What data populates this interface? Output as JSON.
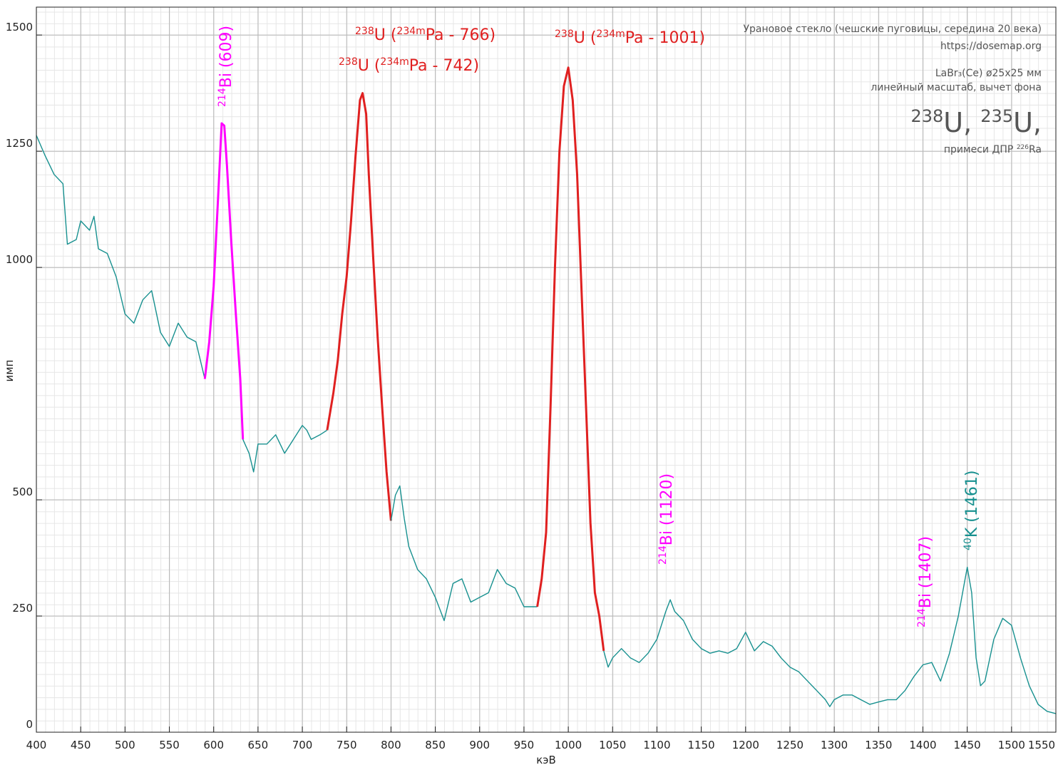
{
  "chart_data": {
    "type": "line",
    "xlabel": "кэВ",
    "ylabel": "имп",
    "xlim": [
      400,
      1550
    ],
    "ylim": [
      0,
      1560
    ],
    "xticks": [
      400,
      450,
      500,
      550,
      600,
      650,
      700,
      750,
      800,
      850,
      900,
      950,
      1000,
      1050,
      1100,
      1150,
      1200,
      1250,
      1300,
      1350,
      1400,
      1450,
      1500,
      1550
    ],
    "yticks": [
      0,
      250,
      500,
      1000,
      1250,
      1500
    ],
    "grid": true,
    "series": [
      {
        "color": "#17908f",
        "x": [
          400,
          410,
          420,
          430,
          435,
          445,
          450,
          460,
          465,
          470,
          480,
          490,
          500,
          510,
          520,
          530,
          540,
          550,
          560,
          570,
          580,
          590
        ],
        "values": [
          1284,
          1240,
          1200,
          1180,
          1050,
          1060,
          1100,
          1080,
          1110,
          1040,
          1030,
          980,
          900,
          880,
          930,
          950,
          860,
          830,
          880,
          850,
          840,
          760
        ]
      },
      {
        "color": "#ff00ff",
        "x": [
          590,
          595,
          600,
          605,
          609,
          612,
          615,
          620,
          625,
          630,
          633
        ],
        "values": [
          760,
          840,
          960,
          1150,
          1310,
          1305,
          1220,
          1050,
          900,
          760,
          630
        ]
      },
      {
        "color": "#17908f",
        "x": [
          633,
          640,
          645,
          650,
          660,
          670,
          680,
          690,
          700,
          705,
          710,
          720,
          728
        ],
        "values": [
          630,
          600,
          560,
          620,
          620,
          640,
          600,
          630,
          660,
          650,
          630,
          640,
          650
        ]
      },
      {
        "color": "#e02020",
        "x": [
          728,
          735,
          740,
          745,
          750,
          755,
          760,
          765,
          768,
          772,
          775,
          780,
          785,
          790,
          795,
          800
        ],
        "values": [
          650,
          730,
          800,
          900,
          980,
          1100,
          1240,
          1360,
          1375,
          1330,
          1200,
          1020,
          850,
          700,
          560,
          455
        ]
      },
      {
        "color": "#17908f",
        "x": [
          800,
          805,
          810,
          815,
          820,
          830,
          840,
          850,
          860,
          870,
          880,
          890,
          900,
          910,
          920,
          930,
          940,
          950,
          960,
          965
        ],
        "values": [
          455,
          510,
          530,
          460,
          400,
          350,
          330,
          290,
          240,
          320,
          330,
          280,
          290,
          300,
          350,
          320,
          310,
          270,
          270,
          270
        ]
      },
      {
        "color": "#e02020",
        "x": [
          965,
          970,
          975,
          980,
          985,
          990,
          995,
          1000,
          1005,
          1010,
          1015,
          1020,
          1025,
          1030,
          1035,
          1040
        ],
        "values": [
          270,
          330,
          430,
          700,
          1000,
          1250,
          1390,
          1430,
          1360,
          1200,
          950,
          700,
          450,
          300,
          250,
          175
        ]
      },
      {
        "color": "#17908f",
        "x": [
          1040,
          1045,
          1050,
          1060,
          1070,
          1080,
          1090,
          1100,
          1110,
          1115,
          1120,
          1130,
          1140,
          1150,
          1160,
          1170,
          1180,
          1190,
          1200,
          1210,
          1220,
          1230,
          1240,
          1250,
          1260,
          1270,
          1280,
          1290,
          1295,
          1300,
          1310,
          1320,
          1330,
          1340,
          1350,
          1360,
          1370,
          1380,
          1390,
          1400,
          1410,
          1420,
          1430,
          1440,
          1450,
          1455,
          1460,
          1465,
          1470,
          1480,
          1490,
          1500,
          1510,
          1520,
          1530,
          1540,
          1550
        ],
        "values": [
          175,
          140,
          160,
          180,
          160,
          150,
          170,
          200,
          260,
          285,
          260,
          240,
          200,
          180,
          170,
          175,
          170,
          180,
          215,
          175,
          195,
          185,
          160,
          140,
          130,
          110,
          90,
          70,
          55,
          70,
          80,
          80,
          70,
          60,
          65,
          70,
          70,
          90,
          120,
          145,
          150,
          110,
          170,
          250,
          355,
          300,
          160,
          100,
          110,
          200,
          245,
          230,
          160,
          100,
          60,
          45,
          40
        ]
      }
    ],
    "annotations": [
      {
        "color": "#ff00ff",
        "parts": [
          {
            "t": "214",
            "sup": true
          },
          {
            "t": "Bi (609)"
          }
        ]
      },
      {
        "color": "#e02020",
        "parts": [
          {
            "t": "238",
            "sup": true
          },
          {
            "t": "U ("
          },
          {
            "t": "234m",
            "sup": true
          },
          {
            "t": "Pa - 766)"
          }
        ]
      },
      {
        "color": "#e02020",
        "parts": [
          {
            "t": "238",
            "sup": true
          },
          {
            "t": "U ("
          },
          {
            "t": "234m",
            "sup": true
          },
          {
            "t": "Pa - 742)"
          }
        ]
      },
      {
        "color": "#e02020",
        "parts": [
          {
            "t": "238",
            "sup": true
          },
          {
            "t": "U ("
          },
          {
            "t": "234m",
            "sup": true
          },
          {
            "t": "Pa - 1001)"
          }
        ]
      },
      {
        "color": "#ff00ff",
        "parts": [
          {
            "t": "214",
            "sup": true
          },
          {
            "t": "Bi (1120)"
          }
        ]
      },
      {
        "color": "#ff00ff",
        "parts": [
          {
            "t": "214",
            "sup": true
          },
          {
            "t": "Bi (1407)"
          }
        ]
      },
      {
        "color": "#17908f",
        "parts": [
          {
            "t": "40",
            "sup": true
          },
          {
            "t": "K (1461)"
          }
        ]
      }
    ],
    "info": [
      {
        "parts": [
          {
            "t": "Урановое стекло (чешские пуговицы, середина 20 века)"
          }
        ]
      },
      {
        "parts": [
          {
            "t": "https://dosemap.org"
          }
        ]
      },
      {
        "parts": [
          {
            "t": "LaBr₃(Ce) ø25x25 мм"
          }
        ]
      },
      {
        "parts": [
          {
            "t": "линейный масштаб, вычет фона"
          }
        ]
      },
      {
        "parts": [
          {
            "t": "238",
            "sup": true
          },
          {
            "t": "U, "
          },
          {
            "t": "235",
            "sup": true
          },
          {
            "t": "U,"
          }
        ]
      },
      {
        "parts": [
          {
            "t": "примеси ДПР "
          },
          {
            "t": "226",
            "sup": true
          },
          {
            "t": "Ra"
          }
        ]
      }
    ]
  }
}
